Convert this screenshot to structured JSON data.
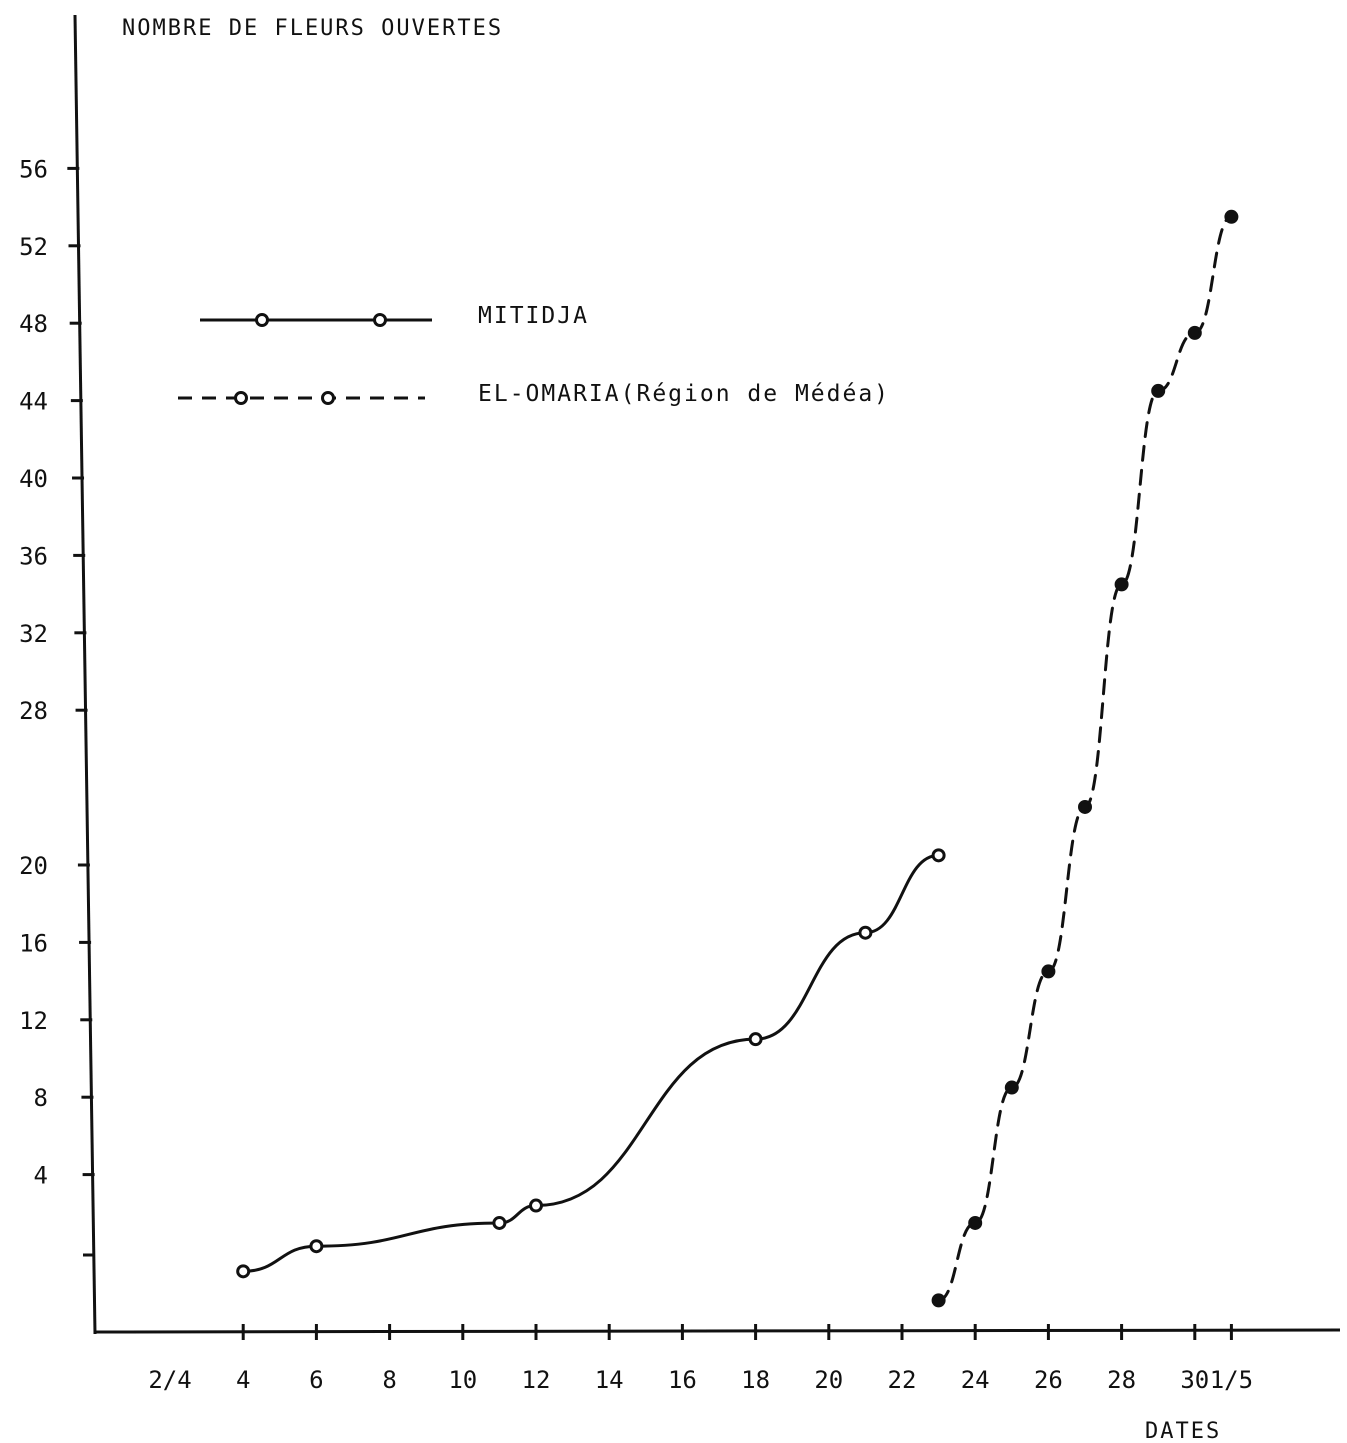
{
  "chart_data": {
    "type": "line",
    "ylabel": "NOMBRE DE FLEURS OUVERTES",
    "xlabel": "DATES",
    "x_tick_labels": [
      "2/4",
      "4",
      "6",
      "8",
      "10",
      "12",
      "14",
      "16",
      "18",
      "20",
      "22",
      "24",
      "26",
      "28",
      "30",
      "1/5"
    ],
    "y_tick_labels": [
      "4",
      "8",
      "12",
      "16",
      "20",
      "28",
      "32",
      "36",
      "40",
      "44",
      "48",
      "52",
      "56"
    ],
    "series": [
      {
        "name": "MITIDJA",
        "line_style": "solid",
        "color": "#111111",
        "points": [
          {
            "x": "4/4",
            "y": -1
          },
          {
            "x": "6/4",
            "y": 0.3
          },
          {
            "x": "11/4",
            "y": 1.5
          },
          {
            "x": "12/4",
            "y": 2.4
          },
          {
            "x": "18/4",
            "y": 11
          },
          {
            "x": "21/4",
            "y": 16.5
          },
          {
            "x": "23/4",
            "y": 20.5
          }
        ]
      },
      {
        "name": "EL-OMARIA(Région de Médéa)",
        "line_style": "dashed",
        "color": "#111111",
        "points": [
          {
            "x": "23/4",
            "y": -2.5
          },
          {
            "x": "24/4",
            "y": 1.5
          },
          {
            "x": "25/4",
            "y": 8.5
          },
          {
            "x": "26/4",
            "y": 14.5
          },
          {
            "x": "27/4",
            "y": 23
          },
          {
            "x": "28/4",
            "y": 34.5
          },
          {
            "x": "29/4",
            "y": 44.5
          },
          {
            "x": "30/4",
            "y": 47.5
          },
          {
            "x": "1/5",
            "y": 53.5
          }
        ]
      }
    ],
    "legend": {
      "position": "top-left",
      "entries": [
        "MITIDJA",
        "EL-OMARIA(Région de Médéa)"
      ]
    },
    "grid": false
  }
}
